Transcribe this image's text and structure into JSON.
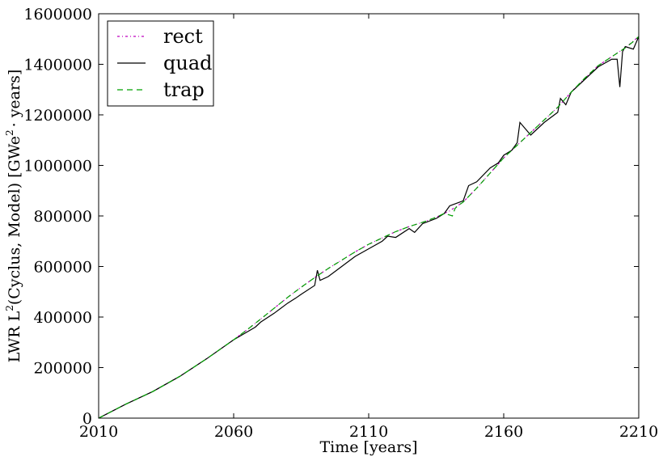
{
  "chart_data": {
    "type": "line",
    "xlabel": "Time [years]",
    "ylabel_main": "LWR L",
    "ylabel_sup1": "2",
    "ylabel_mid": "(Cyclus, Model) [GWe",
    "ylabel_sup2": "2",
    "ylabel_end": "· years]",
    "xlim": [
      2010,
      2210
    ],
    "ylim": [
      0,
      1600000
    ],
    "xticks": [
      2010,
      2060,
      2110,
      2160,
      2210
    ],
    "yticks": [
      0,
      200000,
      400000,
      600000,
      800000,
      1000000,
      1200000,
      1400000,
      1600000
    ],
    "grid": false,
    "legend_position": "top-left",
    "series": [
      {
        "name": "rect",
        "color": "#bf00bf",
        "style": "dashdot",
        "x": [
          2010,
          2020,
          2030,
          2040,
          2050,
          2060,
          2065,
          2070,
          2075,
          2080,
          2085,
          2090,
          2095,
          2100,
          2105,
          2110,
          2115,
          2120,
          2125,
          2130,
          2135,
          2140,
          2145,
          2150,
          2155,
          2160,
          2165,
          2170,
          2175,
          2180,
          2185,
          2190,
          2195,
          2200,
          2205,
          2210
        ],
        "y": [
          0,
          55000,
          105000,
          165000,
          235000,
          310000,
          350000,
          392000,
          435000,
          478000,
          518000,
          556000,
          592000,
          625000,
          658000,
          688000,
          713000,
          738000,
          758000,
          775000,
          795000,
          820000,
          855000,
          910000,
          970000,
          1030000,
          1080000,
          1130000,
          1180000,
          1230000,
          1290000,
          1345000,
          1395000,
          1430000,
          1465000,
          1510000
        ]
      },
      {
        "name": "quad",
        "color": "#000000",
        "style": "solid",
        "x": [
          2010,
          2020,
          2030,
          2040,
          2050,
          2060,
          2068,
          2070,
          2075,
          2080,
          2083,
          2085,
          2090,
          2091,
          2092,
          2095,
          2100,
          2105,
          2110,
          2115,
          2117,
          2120,
          2125,
          2127,
          2130,
          2135,
          2138,
          2140,
          2145,
          2147,
          2150,
          2155,
          2158,
          2160,
          2163,
          2165,
          2166,
          2170,
          2175,
          2180,
          2181,
          2183,
          2185,
          2190,
          2195,
          2200,
          2202,
          2203,
          2204,
          2205,
          2208,
          2210
        ],
        "y": [
          0,
          55000,
          105000,
          165000,
          235000,
          310000,
          360000,
          380000,
          415000,
          455000,
          475000,
          490000,
          525000,
          585000,
          545000,
          560000,
          600000,
          640000,
          670000,
          700000,
          720000,
          715000,
          750000,
          735000,
          770000,
          790000,
          810000,
          840000,
          860000,
          920000,
          935000,
          990000,
          1010000,
          1040000,
          1060000,
          1090000,
          1170000,
          1120000,
          1170000,
          1210000,
          1265000,
          1240000,
          1290000,
          1340000,
          1390000,
          1420000,
          1420000,
          1310000,
          1450000,
          1470000,
          1460000,
          1510000
        ]
      },
      {
        "name": "trap",
        "color": "#00a000",
        "style": "dashed",
        "x": [
          2010,
          2020,
          2030,
          2040,
          2050,
          2060,
          2065,
          2070,
          2075,
          2080,
          2085,
          2090,
          2095,
          2100,
          2105,
          2110,
          2115,
          2120,
          2125,
          2130,
          2135,
          2138,
          2141,
          2142,
          2143,
          2145,
          2150,
          2155,
          2160,
          2165,
          2170,
          2175,
          2180,
          2185,
          2190,
          2195,
          2200,
          2205,
          2208,
          2210
        ],
        "y": [
          0,
          55000,
          105000,
          165000,
          235000,
          310000,
          350000,
          392000,
          435000,
          478000,
          518000,
          556000,
          592000,
          625000,
          658000,
          688000,
          713000,
          738000,
          758000,
          775000,
          795000,
          810000,
          800000,
          830000,
          840000,
          855000,
          910000,
          970000,
          1030000,
          1080000,
          1130000,
          1180000,
          1230000,
          1290000,
          1345000,
          1395000,
          1430000,
          1465000,
          1490000,
          1510000
        ]
      }
    ]
  }
}
